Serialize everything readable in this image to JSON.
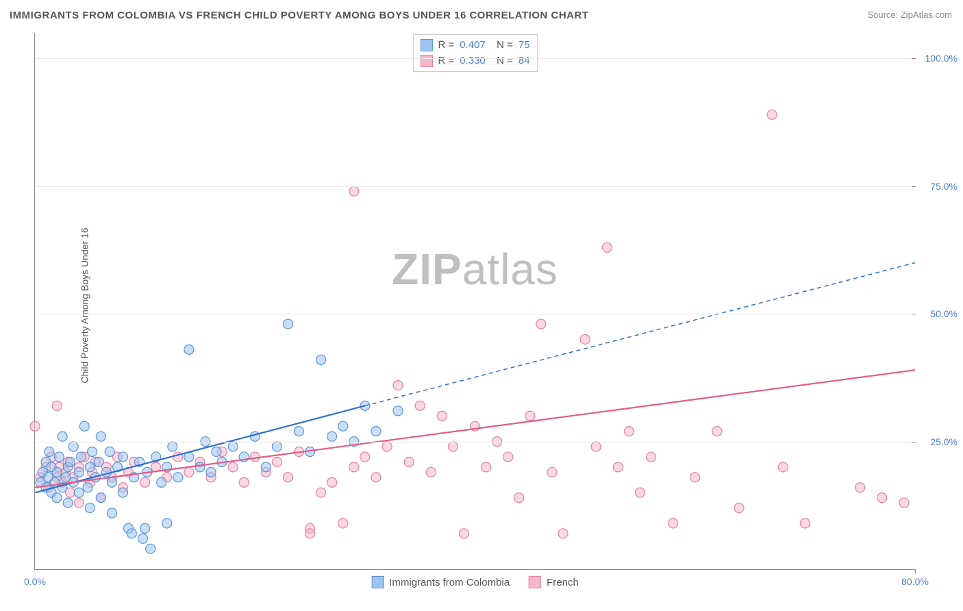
{
  "title": "IMMIGRANTS FROM COLOMBIA VS FRENCH CHILD POVERTY AMONG BOYS UNDER 16 CORRELATION CHART",
  "source": "Source: ZipAtlas.com",
  "watermark_bold": "ZIP",
  "watermark_light": "atlas",
  "chart": {
    "type": "scatter",
    "ylabel": "Child Poverty Among Boys Under 16",
    "xlim": [
      0,
      80
    ],
    "ylim": [
      0,
      105
    ],
    "x_ticks": [
      0,
      80
    ],
    "x_tick_labels": [
      "0.0%",
      "80.0%"
    ],
    "y_ticks": [
      25,
      50,
      75,
      100
    ],
    "y_tick_labels": [
      "25.0%",
      "50.0%",
      "75.0%",
      "100.0%"
    ],
    "background_color": "#ffffff",
    "grid_color": "#e8e8e8",
    "axis_color": "#888888",
    "tick_label_color": "#4a7fd8",
    "marker_radius": 7,
    "marker_opacity": 0.55,
    "series": [
      {
        "name": "Immigrants from Colombia",
        "color_fill": "#9ec5f0",
        "color_stroke": "#5a94d8",
        "R": "0.407",
        "N": "75",
        "trend": {
          "x1": 0,
          "y1": 15,
          "x2": 30,
          "y2": 32,
          "extend_x": 80,
          "extend_y": 60,
          "color": "#2f6fd0",
          "width": 2.2,
          "dash": "6,5"
        },
        "points": [
          [
            0.5,
            17
          ],
          [
            0.7,
            19
          ],
          [
            1,
            16
          ],
          [
            1,
            21
          ],
          [
            1.2,
            18
          ],
          [
            1.3,
            23
          ],
          [
            1.5,
            15
          ],
          [
            1.5,
            20
          ],
          [
            1.8,
            17
          ],
          [
            2,
            19
          ],
          [
            2,
            14
          ],
          [
            2.2,
            22
          ],
          [
            2.5,
            16
          ],
          [
            2.5,
            26
          ],
          [
            2.8,
            18
          ],
          [
            3,
            20
          ],
          [
            3,
            13
          ],
          [
            3.2,
            21
          ],
          [
            3.5,
            17
          ],
          [
            3.5,
            24
          ],
          [
            4,
            15
          ],
          [
            4,
            19
          ],
          [
            4.2,
            22
          ],
          [
            4.5,
            28
          ],
          [
            4.8,
            16
          ],
          [
            5,
            20
          ],
          [
            5,
            12
          ],
          [
            5.2,
            23
          ],
          [
            5.5,
            18
          ],
          [
            5.8,
            21
          ],
          [
            6,
            14
          ],
          [
            6,
            26
          ],
          [
            6.5,
            19
          ],
          [
            6.8,
            23
          ],
          [
            7,
            17
          ],
          [
            7,
            11
          ],
          [
            7.5,
            20
          ],
          [
            8,
            15
          ],
          [
            8,
            22
          ],
          [
            8.5,
            8
          ],
          [
            8.8,
            7
          ],
          [
            9,
            18
          ],
          [
            9.5,
            21
          ],
          [
            9.8,
            6
          ],
          [
            10,
            8
          ],
          [
            10.2,
            19
          ],
          [
            10.5,
            4
          ],
          [
            11,
            22
          ],
          [
            11.5,
            17
          ],
          [
            12,
            9
          ],
          [
            12,
            20
          ],
          [
            12.5,
            24
          ],
          [
            13,
            18
          ],
          [
            14,
            43
          ],
          [
            14,
            22
          ],
          [
            15,
            20
          ],
          [
            15.5,
            25
          ],
          [
            16,
            19
          ],
          [
            16.5,
            23
          ],
          [
            17,
            21
          ],
          [
            18,
            24
          ],
          [
            19,
            22
          ],
          [
            20,
            26
          ],
          [
            21,
            20
          ],
          [
            22,
            24
          ],
          [
            23,
            48
          ],
          [
            24,
            27
          ],
          [
            25,
            23
          ],
          [
            26,
            41
          ],
          [
            27,
            26
          ],
          [
            28,
            28
          ],
          [
            29,
            25
          ],
          [
            30,
            32
          ],
          [
            31,
            27
          ],
          [
            33,
            31
          ]
        ]
      },
      {
        "name": "French",
        "color_fill": "#f5b8c9",
        "color_stroke": "#e87fa3",
        "R": "0.330",
        "N": "84",
        "trend": {
          "x1": 0,
          "y1": 16,
          "x2": 80,
          "y2": 39,
          "color": "#e45b86",
          "width": 2.2
        },
        "points": [
          [
            0,
            28
          ],
          [
            0.5,
            18
          ],
          [
            1,
            20
          ],
          [
            1.2,
            16
          ],
          [
            1.5,
            22
          ],
          [
            2,
            18
          ],
          [
            2,
            32
          ],
          [
            2.2,
            20
          ],
          [
            2.5,
            17
          ],
          [
            2.8,
            19
          ],
          [
            3,
            21
          ],
          [
            3.2,
            15
          ],
          [
            3.5,
            18
          ],
          [
            4,
            20
          ],
          [
            4,
            13
          ],
          [
            4.5,
            22
          ],
          [
            5,
            17
          ],
          [
            5.2,
            19
          ],
          [
            5.5,
            21
          ],
          [
            6,
            14
          ],
          [
            6.5,
            20
          ],
          [
            7,
            18
          ],
          [
            7.5,
            22
          ],
          [
            8,
            16
          ],
          [
            8.5,
            19
          ],
          [
            9,
            21
          ],
          [
            10,
            17
          ],
          [
            11,
            20
          ],
          [
            12,
            18
          ],
          [
            13,
            22
          ],
          [
            14,
            19
          ],
          [
            15,
            21
          ],
          [
            16,
            18
          ],
          [
            17,
            23
          ],
          [
            18,
            20
          ],
          [
            19,
            17
          ],
          [
            20,
            22
          ],
          [
            21,
            19
          ],
          [
            22,
            21
          ],
          [
            23,
            18
          ],
          [
            24,
            23
          ],
          [
            25,
            8
          ],
          [
            25,
            7
          ],
          [
            26,
            15
          ],
          [
            27,
            17
          ],
          [
            28,
            9
          ],
          [
            29,
            74
          ],
          [
            29,
            20
          ],
          [
            30,
            22
          ],
          [
            31,
            18
          ],
          [
            32,
            24
          ],
          [
            33,
            36
          ],
          [
            34,
            21
          ],
          [
            35,
            32
          ],
          [
            36,
            19
          ],
          [
            37,
            30
          ],
          [
            38,
            24
          ],
          [
            39,
            7
          ],
          [
            40,
            28
          ],
          [
            41,
            20
          ],
          [
            42,
            25
          ],
          [
            43,
            22
          ],
          [
            44,
            14
          ],
          [
            45,
            30
          ],
          [
            46,
            48
          ],
          [
            47,
            19
          ],
          [
            48,
            7
          ],
          [
            50,
            45
          ],
          [
            51,
            24
          ],
          [
            52,
            63
          ],
          [
            53,
            20
          ],
          [
            54,
            27
          ],
          [
            55,
            15
          ],
          [
            56,
            22
          ],
          [
            58,
            9
          ],
          [
            60,
            18
          ],
          [
            62,
            27
          ],
          [
            64,
            12
          ],
          [
            67,
            89
          ],
          [
            68,
            20
          ],
          [
            70,
            9
          ],
          [
            75,
            16
          ],
          [
            77,
            14
          ],
          [
            79,
            13
          ]
        ]
      }
    ],
    "bottom_legend": [
      {
        "label": "Immigrants from Colombia",
        "fill": "#9ec5f0",
        "stroke": "#5a94d8"
      },
      {
        "label": "French",
        "fill": "#f5b8c9",
        "stroke": "#e87fa3"
      }
    ]
  }
}
